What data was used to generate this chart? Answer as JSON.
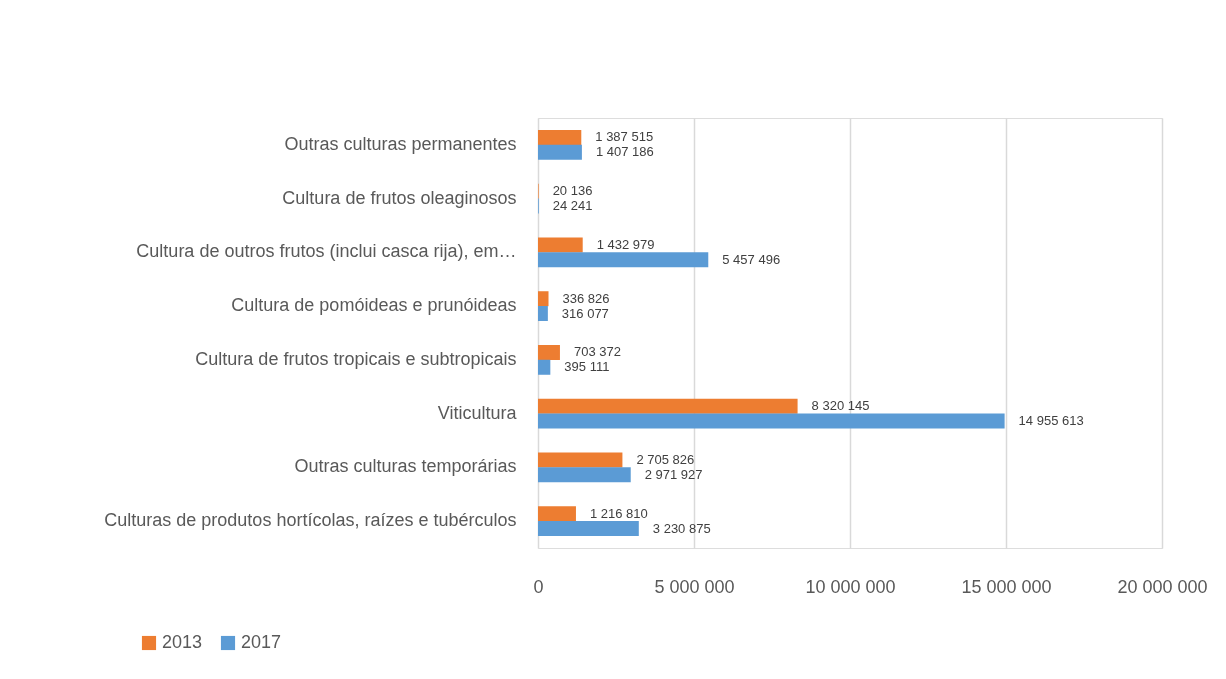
{
  "chart_data": {
    "type": "bar",
    "orientation": "horizontal",
    "categories": [
      "Outras culturas permanentes",
      "Cultura de frutos oleaginosos",
      "Cultura de outros frutos (inclui casca rija), em…",
      "Cultura de pomóideas e prunóideas",
      "Cultura de frutos tropicais e subtropicais",
      "Viticultura",
      "Outras culturas temporárias",
      "Culturas de produtos hortícolas, raízes e tubérculos"
    ],
    "series": [
      {
        "name": "2013",
        "color": "#ed7d31",
        "values": [
          1387515,
          20136,
          1432979,
          336826,
          703372,
          8320145,
          2705826,
          1216810
        ],
        "value_labels": [
          "1 387 515",
          "20 136",
          "1 432 979",
          "336 826",
          "703 372",
          "8 320 145",
          "2 705 826",
          "1 216 810"
        ]
      },
      {
        "name": "2017",
        "color": "#5b9bd5",
        "values": [
          1407186,
          24241,
          5457496,
          316077,
          395111,
          14955613,
          2971927,
          3230875
        ],
        "value_labels": [
          "1 407 186",
          "24 241",
          "5 457 496",
          "316 077",
          "395 111",
          "14 955 613",
          "2 971 927",
          "3 230 875"
        ]
      }
    ],
    "xlim": [
      0,
      20000000
    ],
    "xticks": [
      0,
      {
        "value": 5000000,
        "label": "5 000 000"
      },
      {
        "value": 10000000,
        "label": "10 000 000"
      },
      {
        "value": 15000000,
        "label": "15 000 000"
      },
      {
        "value": 20000000,
        "label": "20 000 000"
      }
    ],
    "grid": "x",
    "legend": "bottom left"
  }
}
